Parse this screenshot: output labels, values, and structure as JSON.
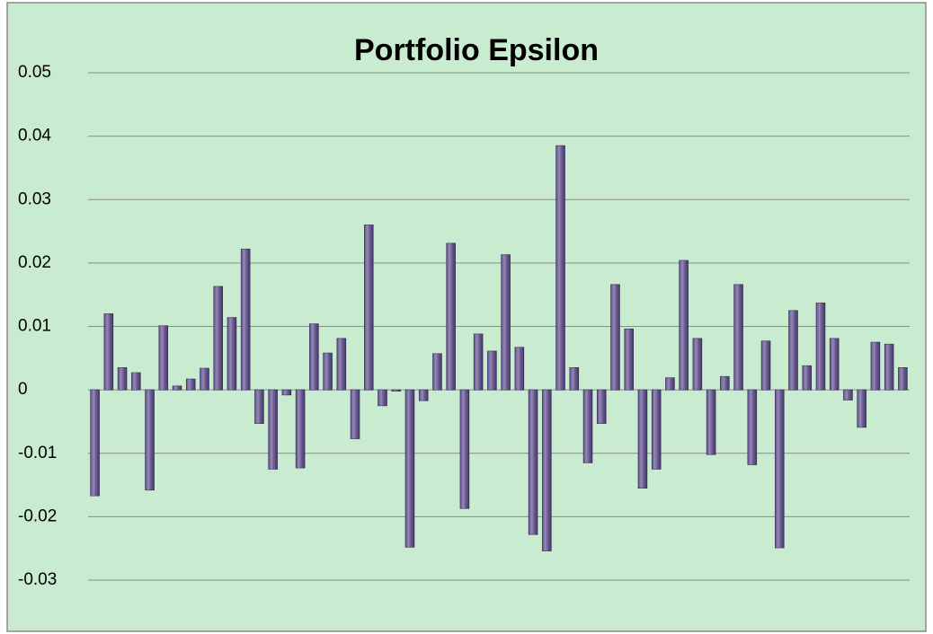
{
  "chart_data": {
    "type": "bar",
    "title": "Portfolio Epsilon",
    "categories": [
      null,
      null,
      null,
      null,
      null,
      null,
      null,
      null,
      null,
      null,
      null,
      null,
      null,
      null,
      null,
      null,
      null,
      null,
      null,
      null,
      null,
      null,
      null,
      null,
      null,
      null,
      null,
      null,
      null,
      null,
      null,
      null,
      null,
      null,
      null,
      null,
      null,
      null,
      null,
      null,
      null,
      null,
      null,
      null,
      null,
      null,
      null,
      null,
      null,
      null,
      null,
      null,
      null,
      null,
      null,
      null,
      null,
      null,
      null,
      null
    ],
    "values": [
      -0.0167,
      0.012,
      0.0035,
      0.0027,
      -0.0158,
      0.0101,
      0.0006,
      0.0017,
      0.0034,
      0.0163,
      0.0114,
      0.0222,
      -0.0053,
      -0.0125,
      -0.0008,
      -0.0123,
      0.0104,
      0.0058,
      0.0081,
      -0.0077,
      0.026,
      -0.0025,
      -0.0002,
      -0.0248,
      -0.0017,
      0.0057,
      0.0231,
      -0.0187,
      0.0088,
      0.0061,
      0.0213,
      0.0067,
      -0.0228,
      -0.0254,
      0.0385,
      0.0035,
      -0.0115,
      -0.0053,
      0.0166,
      0.0096,
      -0.0155,
      -0.0125,
      0.0019,
      0.0204,
      0.0081,
      -0.0102,
      0.0021,
      0.0166,
      -0.0118,
      0.0077,
      -0.0249,
      0.0125,
      0.0038,
      0.0137,
      0.0081,
      -0.0016,
      -0.0059,
      0.0075,
      0.0072,
      0.0035
    ],
    "color": "#5c4a8c",
    "ylim": [
      -0.03,
      0.05
    ],
    "yticks": [
      -0.03,
      -0.02,
      -0.01,
      0,
      0.01,
      0.02,
      0.03,
      0.04,
      0.05
    ],
    "grid": true
  }
}
